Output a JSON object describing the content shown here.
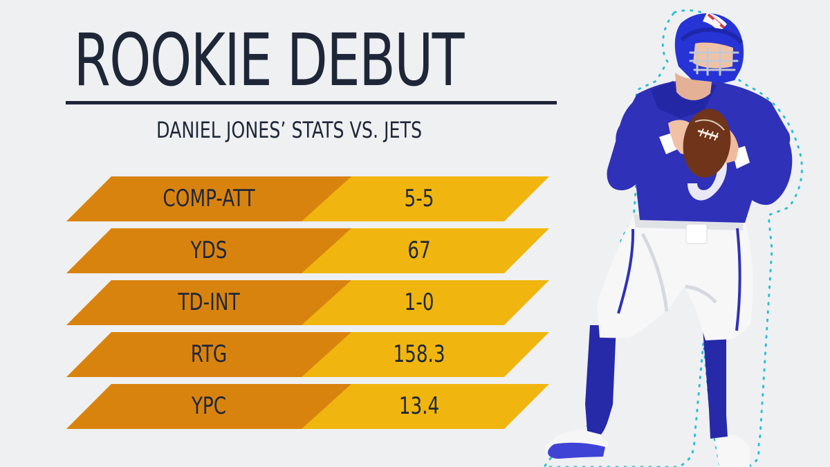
{
  "graphic": {
    "title": "ROOKIE DEBUT",
    "subtitle": "DANIEL JONES’ STATS VS. JETS"
  },
  "stats": [
    {
      "label": "COMP-ATT",
      "value": "5-5"
    },
    {
      "label": "YDS",
      "value": "67"
    },
    {
      "label": "TD-INT",
      "value": "1-0"
    },
    {
      "label": "RTG",
      "value": "158.3"
    },
    {
      "label": "YPC",
      "value": "13.4"
    }
  ],
  "colors": {
    "background": "#eff0f2",
    "text": "#1e2738",
    "label_band": "#d9830f",
    "value_band": "#f0b60f",
    "uniform_blue": "#2f31b8",
    "uniform_white": "#f7f7f8",
    "outline_cyan": "#2bc0d4"
  }
}
